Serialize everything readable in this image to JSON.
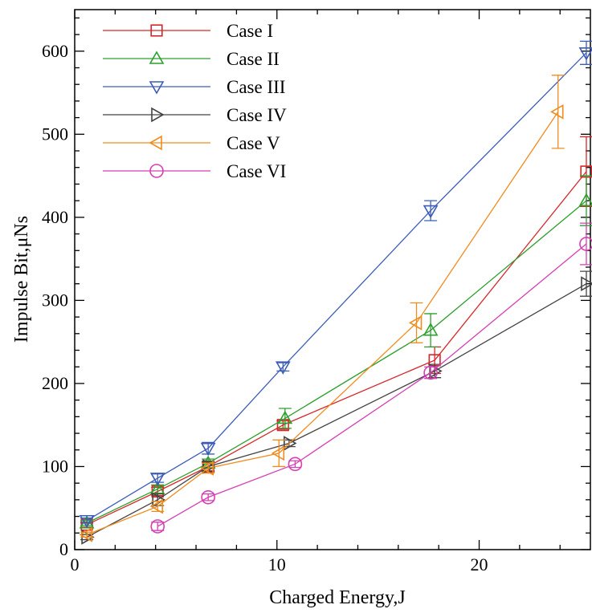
{
  "chart_data": {
    "type": "line",
    "title": "",
    "xlabel": "Charged Energy,J",
    "ylabel": "Impulse Bit,μNs",
    "xlim": [
      0,
      25.5
    ],
    "ylim": [
      0,
      650
    ],
    "x_ticks": [
      0,
      10,
      20
    ],
    "y_ticks": [
      0,
      100,
      200,
      300,
      400,
      500,
      600
    ],
    "grid": false,
    "legend_position": "top-left",
    "error_bars": true,
    "series": [
      {
        "name": "Case I",
        "color": "#d62728",
        "marker": "square",
        "x": [
          0.6,
          4.1,
          6.6,
          10.3,
          17.8,
          25.3
        ],
        "y": [
          30,
          70,
          100,
          150,
          228,
          455
        ],
        "error": [
          3,
          5,
          5,
          5,
          16,
          42
        ]
      },
      {
        "name": "Case II",
        "color": "#2ca02c",
        "marker": "triangle-up",
        "x": [
          0.6,
          4.1,
          6.6,
          10.4,
          17.6,
          25.3
        ],
        "y": [
          32,
          73,
          104,
          158,
          264,
          420
        ],
        "error": [
          3,
          5,
          5,
          12,
          20,
          30
        ]
      },
      {
        "name": "Case III",
        "color": "#3b5db8",
        "marker": "triangle-down",
        "x": [
          0.6,
          4.1,
          6.6,
          10.3,
          17.6,
          25.3
        ],
        "y": [
          35,
          86,
          122,
          220,
          408,
          598
        ],
        "error": [
          3,
          5,
          7,
          5,
          12,
          14
        ]
      },
      {
        "name": "Case IV",
        "color": "#444444",
        "marker": "triangle-right",
        "x": [
          0.6,
          4.1,
          6.6,
          10.6,
          17.8,
          25.3
        ],
        "y": [
          15,
          60,
          100,
          128,
          215,
          320
        ],
        "error": [
          3,
          7,
          6,
          4,
          8,
          15
        ]
      },
      {
        "name": "Case V",
        "color": "#f08c1e",
        "marker": "triangle-left",
        "x": [
          0.6,
          4.1,
          6.6,
          10.1,
          16.9,
          23.9
        ],
        "y": [
          18,
          52,
          98,
          116,
          273,
          527
        ],
        "error": [
          3,
          6,
          6,
          16,
          24,
          44
        ]
      },
      {
        "name": "Case VI",
        "color": "#d63fb4",
        "marker": "circle",
        "x": [
          4.1,
          6.6,
          10.9,
          17.6,
          25.3
        ],
        "y": [
          28,
          63,
          103,
          213,
          368
        ],
        "error": [
          5,
          4,
          4,
          7,
          25
        ]
      }
    ]
  }
}
